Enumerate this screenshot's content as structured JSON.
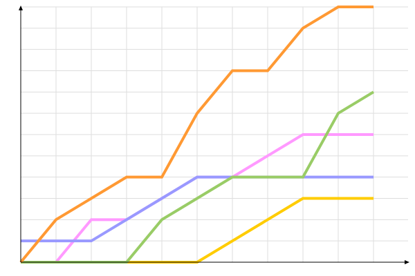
{
  "chart_data": {
    "type": "line",
    "title": "",
    "xlabel": "",
    "ylabel": "",
    "x": [
      0,
      1,
      2,
      3,
      4,
      5,
      6,
      7,
      8,
      9,
      10
    ],
    "xlim": [
      0,
      10
    ],
    "ylim": [
      0,
      12
    ],
    "grid": true,
    "legend": "none",
    "series": [
      {
        "color": "#ffcc00",
        "values": [
          0,
          0,
          0,
          0,
          0,
          0,
          1,
          2,
          3,
          3,
          3
        ]
      },
      {
        "color": "#ff99ff",
        "values": [
          0,
          0,
          2,
          2,
          3,
          4,
          4,
          5,
          6,
          6,
          6
        ]
      },
      {
        "color": "#9999ff",
        "values": [
          1,
          1,
          1,
          2,
          3,
          4,
          4,
          4,
          4,
          4,
          4
        ]
      },
      {
        "color": "#99cc66",
        "values": [
          0,
          0,
          0,
          0,
          2,
          3,
          4,
          4,
          4,
          7,
          8
        ]
      },
      {
        "color": "#ff9933",
        "values": [
          0,
          2,
          3,
          4,
          4,
          7,
          9,
          9,
          11,
          12,
          12
        ]
      }
    ]
  }
}
